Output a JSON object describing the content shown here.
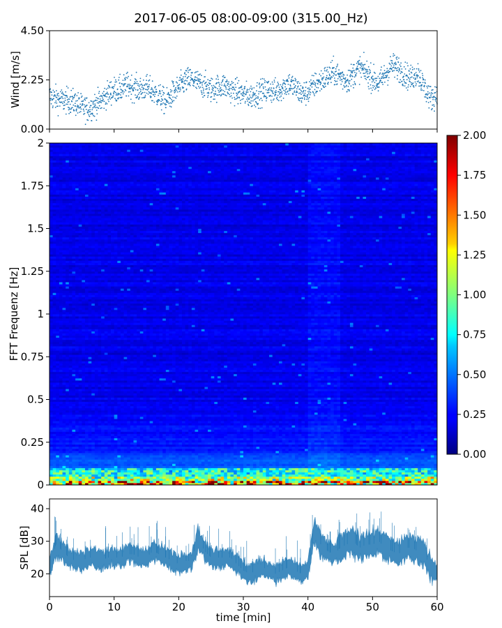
{
  "title": "2017-06-05 08:00-09:00 (315.00_Hz)",
  "colors": {
    "series": "#1f77b4",
    "axis": "#000000",
    "background": "#ffffff"
  },
  "chart_data": [
    {
      "id": "wind",
      "type": "scatter",
      "title": "",
      "xlabel": "",
      "ylabel": "Wind [m/s]",
      "xlim": [
        0,
        60
      ],
      "ylim": [
        0,
        4.5
      ],
      "yticks": [
        "0.00",
        "2.25",
        "4.50"
      ],
      "xticks_shown": false,
      "point_count": 1800,
      "series": [
        {
          "x": [
            0,
            1,
            2,
            3,
            4,
            5,
            6,
            7,
            8,
            9,
            10,
            11,
            12,
            13,
            14,
            15,
            16,
            17,
            18,
            19,
            20,
            21,
            22,
            23,
            24,
            25,
            26,
            27,
            28,
            29,
            30,
            31,
            32,
            33,
            34,
            35,
            36,
            37,
            38,
            39,
            40,
            41,
            42,
            43,
            44,
            45,
            46,
            47,
            48,
            49,
            50,
            51,
            52,
            53,
            54,
            55,
            56,
            57,
            58,
            59,
            60
          ],
          "y": [
            1.5,
            1.4,
            1.3,
            1.3,
            1.2,
            1.0,
            0.9,
            1.1,
            1.3,
            1.6,
            1.8,
            1.8,
            2.0,
            1.9,
            1.8,
            1.9,
            1.7,
            1.5,
            1.2,
            1.6,
            1.9,
            2.2,
            2.3,
            2.1,
            2.0,
            1.8,
            1.9,
            2.0,
            1.8,
            1.7,
            1.6,
            1.5,
            1.6,
            1.7,
            1.8,
            1.7,
            1.9,
            2.1,
            1.9,
            1.6,
            1.7,
            2.0,
            2.2,
            2.4,
            2.6,
            2.4,
            2.2,
            2.5,
            2.8,
            2.6,
            2.3,
            2.1,
            2.5,
            2.9,
            2.8,
            2.5,
            2.3,
            2.6,
            1.9,
            1.4,
            1.6
          ]
        }
      ]
    },
    {
      "id": "spectrogram",
      "type": "heatmap",
      "title": "",
      "xlabel": "",
      "ylabel": "FFT Frequenz [Hz]",
      "xlim": [
        0,
        60
      ],
      "ylim": [
        0,
        2
      ],
      "yticks": [
        "0",
        "0.25",
        "0.5",
        "0.75",
        "1",
        "1.25",
        "1.5",
        "1.75",
        "2"
      ],
      "colormap": "jet",
      "clim": [
        0,
        2
      ],
      "colorbar_ticks": [
        "0.00",
        "0.25",
        "0.50",
        "0.75",
        "1.00",
        "1.25",
        "1.50",
        "1.75",
        "2.00"
      ],
      "time_bins": 120,
      "freq_bins": 160
    },
    {
      "id": "spl",
      "type": "area",
      "title": "",
      "xlabel": "time [min]",
      "ylabel": "SPL [dB]",
      "xlim": [
        0,
        60
      ],
      "ylim": [
        13,
        43
      ],
      "yticks": [
        "20",
        "30",
        "40"
      ],
      "xticks": [
        "0",
        "10",
        "20",
        "30",
        "40",
        "50",
        "60"
      ],
      "series": [
        {
          "x": [
            0,
            1,
            2,
            3,
            4,
            5,
            6,
            7,
            8,
            9,
            10,
            11,
            12,
            13,
            14,
            15,
            16,
            17,
            18,
            19,
            20,
            21,
            22,
            23,
            24,
            25,
            26,
            27,
            28,
            29,
            30,
            31,
            32,
            33,
            34,
            35,
            36,
            37,
            38,
            39,
            40,
            41,
            42,
            43,
            44,
            45,
            46,
            47,
            48,
            49,
            50,
            51,
            52,
            53,
            54,
            55,
            56,
            57,
            58,
            59,
            60
          ],
          "center": [
            22,
            29,
            27,
            25,
            24,
            24,
            25,
            25,
            24,
            25,
            25,
            25,
            26,
            26,
            25,
            25,
            27,
            26,
            25,
            24,
            23,
            24,
            24,
            31,
            27,
            25,
            25,
            25,
            25,
            23,
            21,
            20,
            21,
            22,
            21,
            20,
            21,
            22,
            21,
            20,
            21,
            33,
            29,
            27,
            26,
            28,
            29,
            30,
            28,
            29,
            29,
            30,
            28,
            27,
            26,
            28,
            28,
            27,
            26,
            22,
            20
          ],
          "spread": [
            3,
            4,
            3,
            3,
            3,
            3,
            3,
            3,
            3,
            3,
            3,
            3,
            3,
            3,
            3,
            3,
            3,
            3,
            3,
            3,
            3,
            3,
            3,
            4,
            3,
            3,
            3,
            3,
            3,
            3,
            3,
            3,
            3,
            3,
            3,
            3,
            3,
            3,
            3,
            3,
            3,
            4,
            4,
            3,
            3,
            4,
            4,
            4,
            4,
            4,
            4,
            4,
            4,
            4,
            4,
            4,
            4,
            4,
            4,
            4,
            3
          ]
        }
      ]
    }
  ]
}
